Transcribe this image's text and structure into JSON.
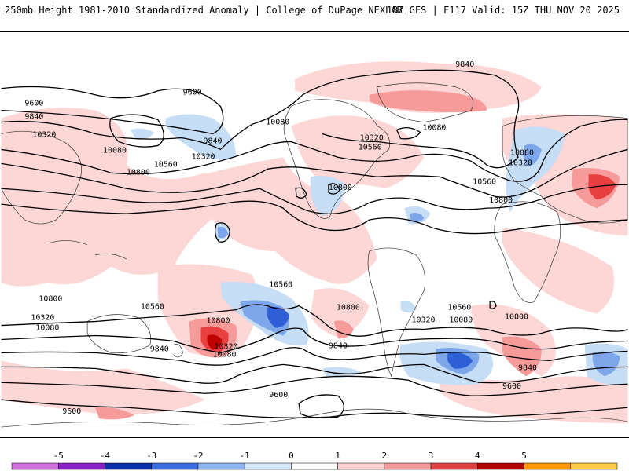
{
  "header": {
    "left_title": "250mb Height 1981-2010 Standardized Anomaly | College of DuPage NEXLAB",
    "right_title": "18Z GFS | F117 Valid: 15Z THU NOV 20 2025"
  },
  "colors": {
    "pos1": "#fdd6d6",
    "pos2": "#f79a9a",
    "pos3": "#e84040",
    "pos4": "#c00000",
    "neg1": "#c6ddf6",
    "neg2": "#7da7ea",
    "neg3": "#2f5fd7",
    "neg4": "#001e9c",
    "contour": "#000000",
    "land": "#333333"
  },
  "colorbar": {
    "ticks": [
      "-5",
      "-4",
      "-3",
      "-2",
      "-1",
      "0",
      "1",
      "2",
      "3",
      "4",
      "5"
    ],
    "colors": [
      "#d070e0",
      "#8a1fc8",
      "#0b2fa8",
      "#3a6de0",
      "#8fb5f0",
      "#d4e6fa",
      "#ffffff",
      "#fdd0d0",
      "#f39a9a",
      "#e04444",
      "#b80000",
      "#ff9a00",
      "#ffcc40"
    ]
  },
  "height_labels": [
    {
      "text": "9840",
      "cls": "top"
    },
    {
      "text": "9600",
      "cls": "a"
    },
    {
      "text": "9600",
      "cls": "b"
    },
    {
      "text": "9840",
      "cls": "c"
    },
    {
      "text": "10320",
      "cls": "d"
    },
    {
      "text": "10080",
      "cls": "e"
    },
    {
      "text": "10560",
      "cls": "f"
    },
    {
      "text": "10800",
      "cls": "g"
    },
    {
      "text": "9840",
      "cls": "h"
    },
    {
      "text": "10080",
      "cls": "i"
    },
    {
      "text": "10320",
      "cls": "j"
    },
    {
      "text": "10320",
      "cls": "k"
    },
    {
      "text": "10560",
      "cls": "l"
    },
    {
      "text": "10080",
      "cls": "m"
    },
    {
      "text": "10800",
      "cls": "n"
    },
    {
      "text": "10080",
      "cls": "o"
    },
    {
      "text": "10320",
      "cls": "p"
    },
    {
      "text": "10560",
      "cls": "q"
    },
    {
      "text": "10800",
      "cls": "r"
    },
    {
      "text": "10800",
      "cls": "s"
    },
    {
      "text": "10560",
      "cls": "t"
    },
    {
      "text": "10320",
      "cls": "u"
    },
    {
      "text": "10080",
      "cls": "v"
    },
    {
      "text": "10560",
      "cls": "w"
    },
    {
      "text": "10800",
      "cls": "x"
    },
    {
      "text": "10320",
      "cls": "y"
    },
    {
      "text": "10080",
      "cls": "z"
    },
    {
      "text": "9840",
      "cls": "aa"
    },
    {
      "text": "10800",
      "cls": "bb"
    },
    {
      "text": "10560",
      "cls": "cc"
    },
    {
      "text": "10320",
      "cls": "dd"
    },
    {
      "text": "10080",
      "cls": "ee"
    },
    {
      "text": "10800",
      "cls": "ff"
    },
    {
      "text": "9840",
      "cls": "gg"
    },
    {
      "text": "9600",
      "cls": "hh"
    },
    {
      "text": "9600",
      "cls": "ii"
    },
    {
      "text": "9600",
      "cls": "jj"
    },
    {
      "text": "9840",
      "cls": "kk"
    }
  ]
}
